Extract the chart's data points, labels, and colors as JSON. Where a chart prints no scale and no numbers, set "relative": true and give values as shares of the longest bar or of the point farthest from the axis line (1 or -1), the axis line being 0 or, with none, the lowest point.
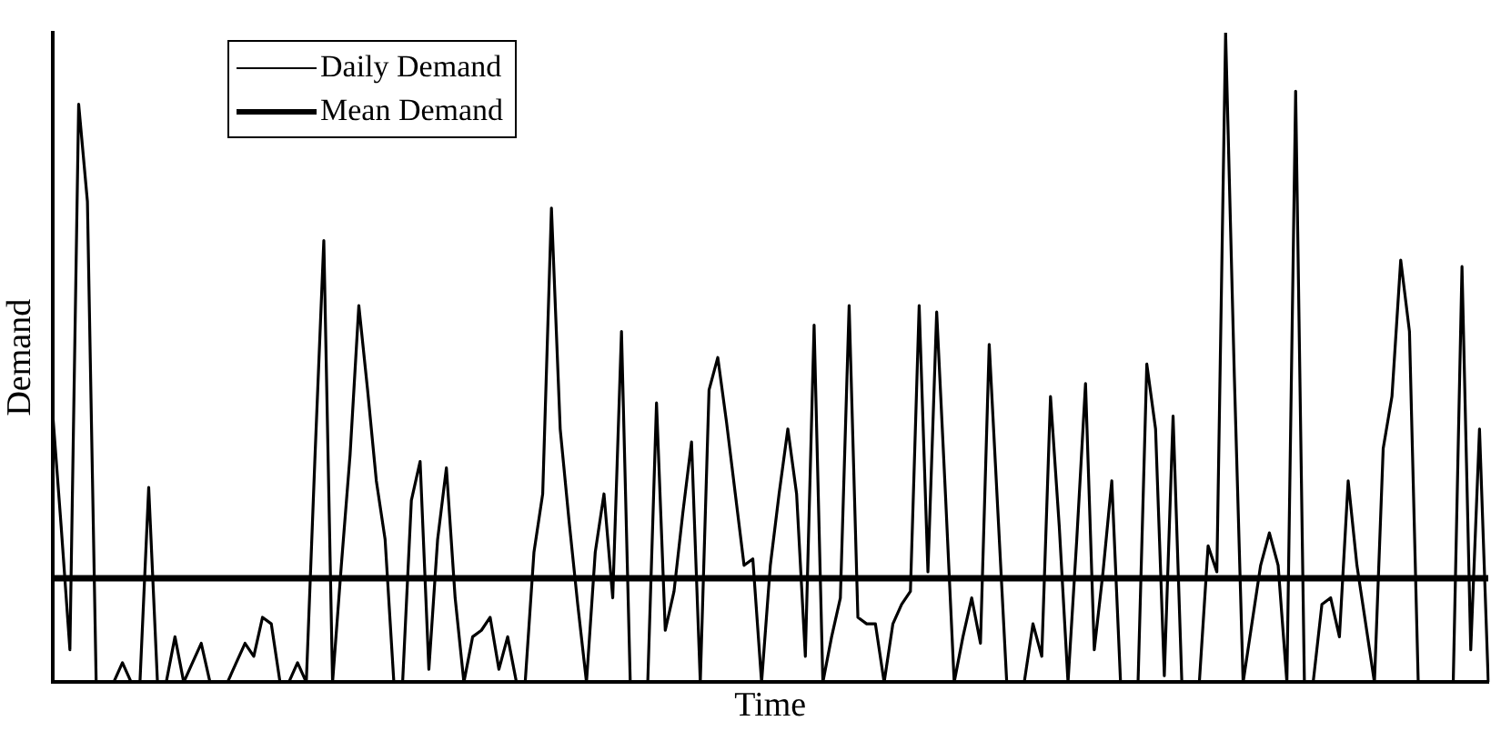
{
  "chart_data": {
    "type": "line",
    "xlabel": "Time",
    "ylabel": "Demand",
    "relative": true,
    "legend": "top left",
    "grid": false,
    "marker": "none",
    "line_style": "solid",
    "categories": [
      null,
      null,
      null,
      null,
      null,
      null,
      null,
      null,
      null,
      null,
      null,
      null,
      null,
      null,
      null,
      null,
      null,
      null,
      null,
      null,
      null,
      null,
      null,
      null,
      null,
      null,
      null,
      null,
      null,
      null,
      null,
      null,
      null,
      null,
      null,
      null,
      null,
      null,
      null,
      null,
      null,
      null,
      null,
      null,
      null,
      null,
      null,
      null,
      null,
      null,
      null,
      null,
      null,
      null,
      null,
      null,
      null,
      null,
      null,
      null,
      null,
      null,
      null,
      null,
      null,
      null,
      null,
      null,
      null,
      null,
      null,
      null,
      null,
      null,
      null,
      null,
      null,
      null,
      null,
      null,
      null,
      null,
      null,
      null,
      null,
      null,
      null,
      null,
      null,
      null,
      null,
      null,
      null,
      null,
      null,
      null,
      null,
      null,
      null,
      null,
      null,
      null,
      null,
      null,
      null,
      null,
      null,
      null,
      null,
      null,
      null,
      null,
      null,
      null,
      null,
      null,
      null,
      null,
      null,
      null,
      null,
      null,
      null,
      null,
      null,
      null,
      null,
      null,
      null,
      null,
      null,
      null,
      null,
      null,
      null,
      null,
      null,
      null,
      null,
      null,
      null,
      null,
      null,
      null,
      null,
      null,
      null,
      null,
      null,
      null,
      null,
      null,
      null,
      null,
      null,
      null,
      null,
      null,
      null,
      null,
      null,
      null,
      null,
      null,
      null
    ],
    "series": [
      {
        "name": "Daily Demand",
        "color": "#000000",
        "values": [
          0.42,
          0.24,
          0.05,
          0.89,
          0.74,
          0,
          0,
          0,
          0.03,
          0,
          0,
          0.3,
          0,
          0,
          0.07,
          0,
          0.03,
          0.06,
          0,
          0,
          0,
          0.03,
          0.06,
          0.04,
          0.1,
          0.09,
          0,
          0,
          0.03,
          0,
          0.35,
          0.68,
          0,
          0.18,
          0.35,
          0.58,
          0.45,
          0.31,
          0.22,
          0,
          0,
          0.28,
          0.34,
          0.02,
          0.22,
          0.33,
          0.13,
          0,
          0.07,
          0.08,
          0.1,
          0.02,
          0.07,
          0,
          0,
          0.2,
          0.29,
          0.73,
          0.39,
          0.25,
          0.12,
          0,
          0.2,
          0.29,
          0.13,
          0.54,
          0,
          0,
          0,
          0.43,
          0.08,
          0.14,
          0.26,
          0.37,
          0,
          0.45,
          0.5,
          0.4,
          0.29,
          0.18,
          0.19,
          0,
          0.18,
          0.29,
          0.39,
          0.29,
          0.04,
          0.55,
          0,
          0.07,
          0.13,
          0.58,
          0.1,
          0.09,
          0.09,
          0,
          0.09,
          0.12,
          0.14,
          0.58,
          0.17,
          0.57,
          0.29,
          0,
          0.07,
          0.13,
          0.06,
          0.52,
          0.26,
          0,
          0,
          0,
          0.09,
          0.04,
          0.44,
          0.24,
          0,
          0.22,
          0.46,
          0.05,
          0.17,
          0.31,
          0,
          0,
          0,
          0.49,
          0.39,
          0.01,
          0.41,
          0,
          0,
          0,
          0.21,
          0.17,
          1,
          0.47,
          0,
          0.09,
          0.18,
          0.23,
          0.18,
          0,
          0.91,
          0,
          0,
          0.12,
          0.13,
          0.07,
          0.31,
          0.18,
          0.09,
          0,
          0.36,
          0.44,
          0.65,
          0.54,
          0,
          0,
          0,
          0,
          0,
          0.64,
          0.05,
          0.39,
          0
        ]
      },
      {
        "name": "Mean Demand",
        "color": "#000000",
        "values": [
          0.16,
          0.16,
          0.16,
          0.16,
          0.16,
          0.16,
          0.16,
          0.16,
          0.16,
          0.16,
          0.16,
          0.16,
          0.16,
          0.16,
          0.16,
          0.16,
          0.16,
          0.16,
          0.16,
          0.16,
          0.16,
          0.16,
          0.16,
          0.16,
          0.16,
          0.16,
          0.16,
          0.16,
          0.16,
          0.16,
          0.16,
          0.16,
          0.16,
          0.16,
          0.16,
          0.16,
          0.16,
          0.16,
          0.16,
          0.16,
          0.16,
          0.16,
          0.16,
          0.16,
          0.16,
          0.16,
          0.16,
          0.16,
          0.16,
          0.16,
          0.16,
          0.16,
          0.16,
          0.16,
          0.16,
          0.16,
          0.16,
          0.16,
          0.16,
          0.16,
          0.16,
          0.16,
          0.16,
          0.16,
          0.16,
          0.16,
          0.16,
          0.16,
          0.16,
          0.16,
          0.16,
          0.16,
          0.16,
          0.16,
          0.16,
          0.16,
          0.16,
          0.16,
          0.16,
          0.16,
          0.16,
          0.16,
          0.16,
          0.16,
          0.16,
          0.16,
          0.16,
          0.16,
          0.16,
          0.16,
          0.16,
          0.16,
          0.16,
          0.16,
          0.16,
          0.16,
          0.16,
          0.16,
          0.16,
          0.16,
          0.16,
          0.16,
          0.16,
          0.16,
          0.16,
          0.16,
          0.16,
          0.16,
          0.16,
          0.16,
          0.16,
          0.16,
          0.16,
          0.16,
          0.16,
          0.16,
          0.16,
          0.16,
          0.16,
          0.16,
          0.16,
          0.16,
          0.16,
          0.16,
          0.16,
          0.16,
          0.16,
          0.16,
          0.16,
          0.16,
          0.16,
          0.16,
          0.16,
          0.16,
          0.16,
          0.16,
          0.16,
          0.16,
          0.16,
          0.16,
          0.16,
          0.16,
          0.16,
          0.16,
          0.16,
          0.16,
          0.16,
          0.16,
          0.16,
          0.16,
          0.16,
          0.16,
          0.16,
          0.16,
          0.16,
          0.16,
          0.16,
          0.16,
          0.16,
          0.16,
          0.16,
          0.16,
          0.16,
          0.16,
          0.16
        ]
      }
    ]
  }
}
